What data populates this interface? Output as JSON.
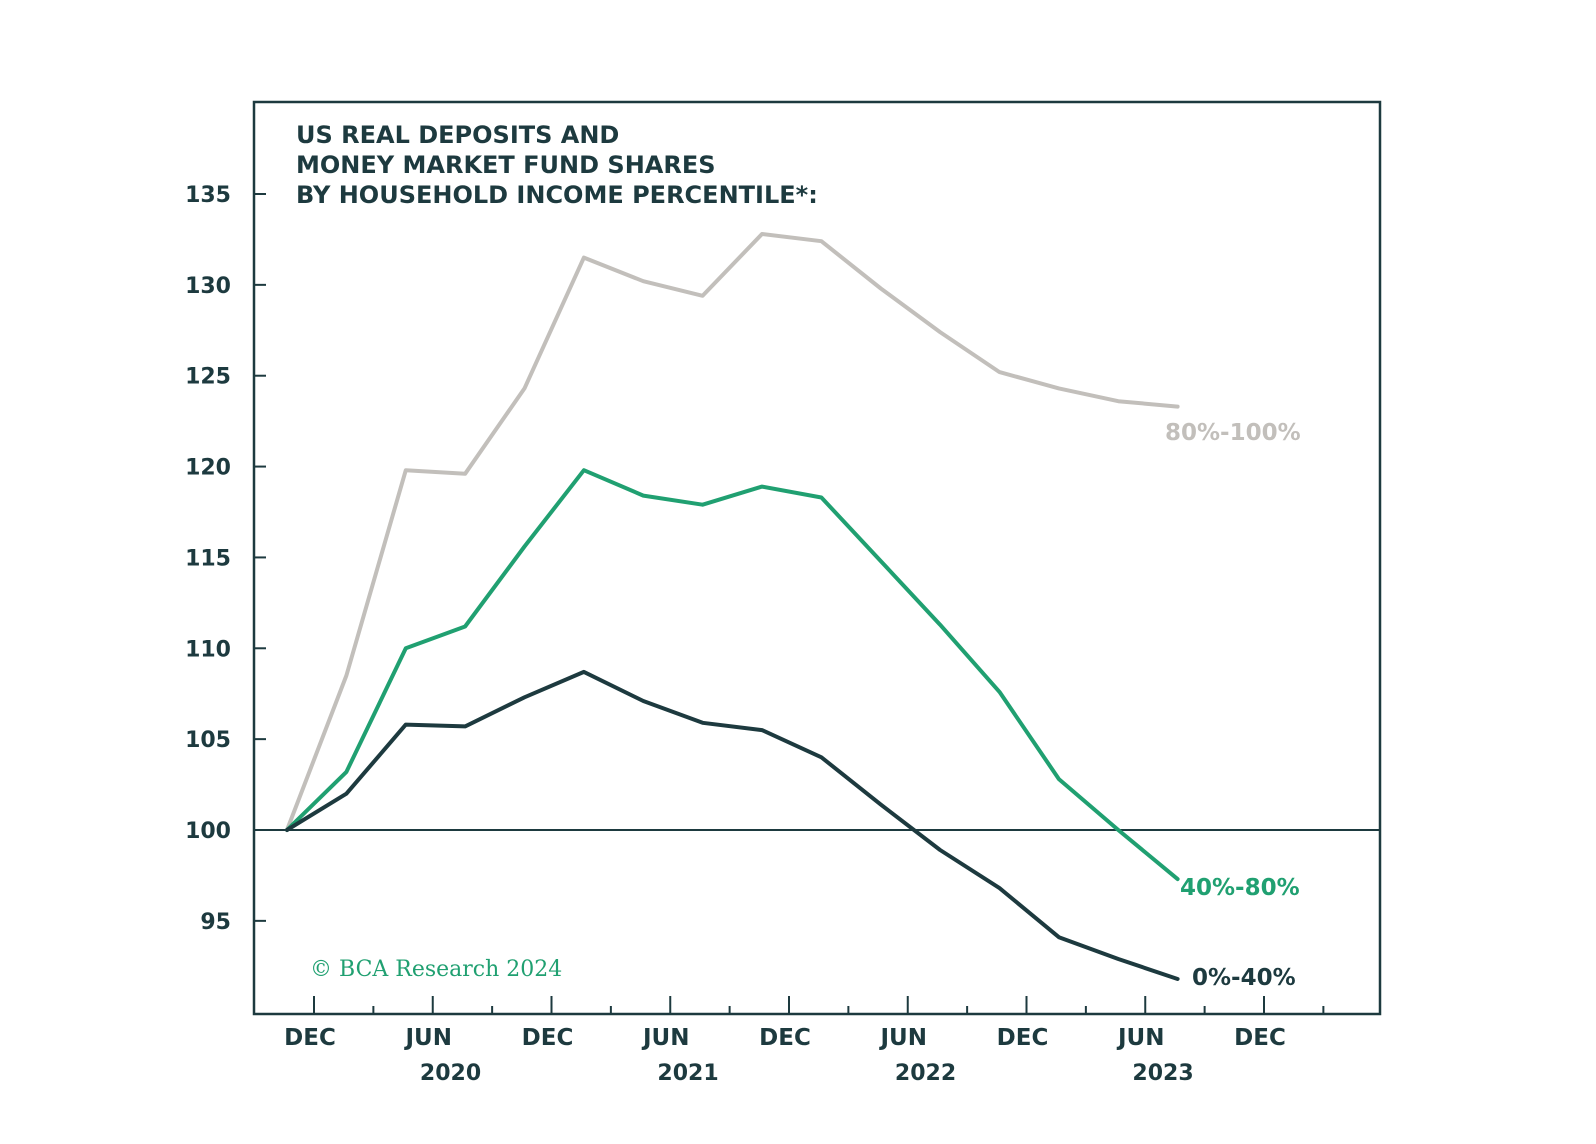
{
  "chart_data": {
    "type": "line",
    "title_lines": [
      "US REAL DEPOSITS AND",
      "MONEY MARKET FUND SHARES",
      "BY HOUSEHOLD INCOME PERCENTILE*:"
    ],
    "copyright": "© BCA Research 2024",
    "ylim": [
      90,
      140
    ],
    "yticks": [
      "135",
      "130",
      "125",
      "120",
      "115",
      "110",
      "105",
      "100",
      "95"
    ],
    "ytick_values": [
      135,
      130,
      125,
      120,
      115,
      110,
      105,
      100,
      95
    ],
    "x_range": [
      -1,
      46
    ],
    "xticks": [
      {
        "label": "DEC",
        "month": 0
      },
      {
        "label": "JUN",
        "month": 6
      },
      {
        "label": "DEC",
        "month": 12
      },
      {
        "label": "JUN",
        "month": 18
      },
      {
        "label": "DEC",
        "month": 24
      },
      {
        "label": "JUN",
        "month": 30
      },
      {
        "label": "DEC",
        "month": 36
      },
      {
        "label": "JUN",
        "month": 42
      },
      {
        "label": "DEC",
        "month": 48
      }
    ],
    "years": [
      {
        "label": "2020",
        "month": 7
      },
      {
        "label": "2021",
        "month": 19
      },
      {
        "label": "2022",
        "month": 31
      },
      {
        "label": "2023",
        "month": 43
      }
    ],
    "reference_line": 100,
    "x": [
      0,
      3,
      6,
      9,
      12,
      15,
      18,
      21,
      24,
      27,
      30,
      33,
      36,
      39,
      42,
      45
    ],
    "series": [
      {
        "name": "80%-100%",
        "color": "#c2bfbb",
        "values": [
          100,
          108.5,
          119.8,
          119.6,
          124.3,
          131.5,
          130.2,
          129.4,
          132.8,
          132.4,
          129.8,
          127.4,
          125.2,
          124.3,
          123.6,
          123.3
        ]
      },
      {
        "name": "40%-80%",
        "color": "#20a071",
        "values": [
          100,
          103.2,
          110.0,
          111.2,
          115.6,
          119.8,
          118.4,
          117.9,
          118.9,
          118.3,
          114.8,
          111.3,
          107.6,
          102.8,
          100.0,
          97.3
        ]
      },
      {
        "name": "0%-40%",
        "color": "#1d3a3f",
        "values": [
          100,
          102.0,
          105.8,
          105.7,
          107.3,
          108.7,
          107.1,
          105.9,
          105.5,
          104.0,
          101.4,
          98.9,
          96.8,
          94.1,
          92.9,
          91.8
        ]
      }
    ]
  }
}
